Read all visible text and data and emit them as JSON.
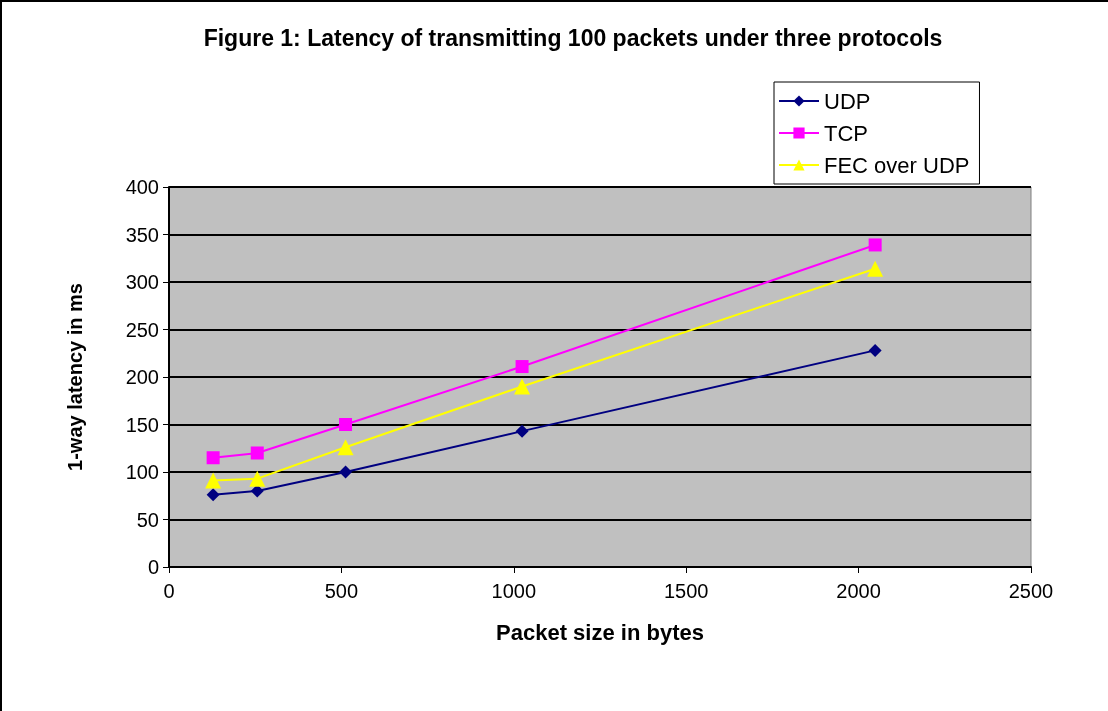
{
  "chart_data": {
    "type": "line",
    "title": "Figure 1: Latency of transmitting 100 packets under three protocols",
    "xlabel": "Packet size in bytes",
    "ylabel": "1-way latency in ms",
    "x": [
      128,
      256,
      512,
      1024,
      2048
    ],
    "series": [
      {
        "name": "UDP",
        "color": "#000080",
        "marker": "diamond",
        "values": [
          76,
          80,
          100,
          143,
          228
        ]
      },
      {
        "name": "TCP",
        "color": "#ff00ff",
        "marker": "square",
        "values": [
          115,
          120,
          150,
          211,
          339
        ]
      },
      {
        "name": "FEC over UDP",
        "color": "#ffff00",
        "marker": "triangle",
        "values": [
          91,
          93,
          126,
          190,
          314
        ]
      }
    ],
    "xlim": [
      0,
      2500
    ],
    "xticks": [
      0,
      500,
      1000,
      1500,
      2000,
      2500
    ],
    "ylim": [
      0,
      400
    ],
    "yticks": [
      0,
      50,
      100,
      150,
      200,
      250,
      300,
      350,
      400
    ],
    "grid": "y",
    "legend": "top right",
    "line_style": "solid"
  }
}
